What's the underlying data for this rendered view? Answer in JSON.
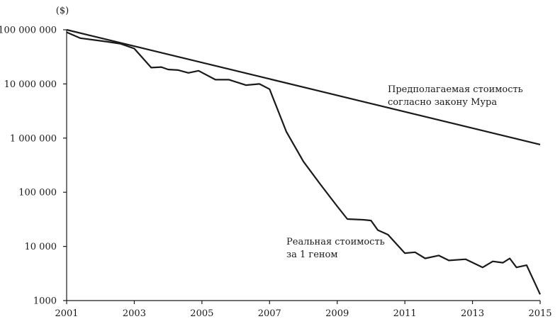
{
  "chart_data": {
    "type": "line",
    "yscale": "log",
    "y_unit_label": "($)",
    "xlim": [
      2001,
      2015
    ],
    "ylim": [
      1000,
      100000000
    ],
    "grid": false,
    "x_ticks": [
      2001,
      2003,
      2005,
      2007,
      2009,
      2011,
      2013,
      2015
    ],
    "x_tick_labels": [
      "2001",
      "2003",
      "2005",
      "2007",
      "2009",
      "2011",
      "2013",
      "2015"
    ],
    "y_ticks": [
      1000,
      10000,
      100000,
      1000000,
      10000000,
      100000000
    ],
    "y_tick_labels": [
      "1000",
      "10 000",
      "100 000",
      "1 000 000",
      "10 000 000",
      "100 000 000"
    ],
    "series": [
      {
        "name": "Предполагаемая стоимость согласно закону Мура",
        "points": [
          [
            2001.0,
            100000000
          ],
          [
            2015.0,
            760000
          ]
        ]
      },
      {
        "name": "Реальная стоимость за 1 геном",
        "points": [
          [
            2001.0,
            90000000
          ],
          [
            2001.4,
            70000000
          ],
          [
            2002.2,
            60000000
          ],
          [
            2002.6,
            55000000
          ],
          [
            2003.0,
            45000000
          ],
          [
            2003.5,
            20000000
          ],
          [
            2003.8,
            20500000
          ],
          [
            2004.0,
            18500000
          ],
          [
            2004.3,
            18000000
          ],
          [
            2004.6,
            16000000
          ],
          [
            2004.9,
            17500000
          ],
          [
            2005.4,
            12000000
          ],
          [
            2005.8,
            12000000
          ],
          [
            2006.3,
            9500000
          ],
          [
            2006.7,
            10000000
          ],
          [
            2007.0,
            8000000
          ],
          [
            2007.5,
            1300000
          ],
          [
            2008.0,
            370000
          ],
          [
            2008.5,
            140000
          ],
          [
            2009.0,
            55000
          ],
          [
            2009.3,
            32000
          ],
          [
            2009.8,
            31000
          ],
          [
            2010.0,
            30000
          ],
          [
            2010.2,
            20000
          ],
          [
            2010.5,
            16500
          ],
          [
            2011.0,
            7500
          ],
          [
            2011.3,
            7800
          ],
          [
            2011.6,
            6000
          ],
          [
            2012.0,
            6800
          ],
          [
            2012.3,
            5500
          ],
          [
            2012.8,
            5800
          ],
          [
            2013.3,
            4100
          ],
          [
            2013.6,
            5300
          ],
          [
            2013.9,
            5000
          ],
          [
            2014.1,
            6000
          ],
          [
            2014.3,
            4100
          ],
          [
            2014.6,
            4500
          ],
          [
            2015.0,
            1300
          ]
        ]
      }
    ],
    "annotations": [
      {
        "lines": [
          "Предполагаемая стоимость",
          "согласно закону Мура"
        ],
        "target_series": 0
      },
      {
        "lines": [
          "Реальная стоимость",
          "за 1 геном"
        ],
        "target_series": 1
      }
    ]
  }
}
